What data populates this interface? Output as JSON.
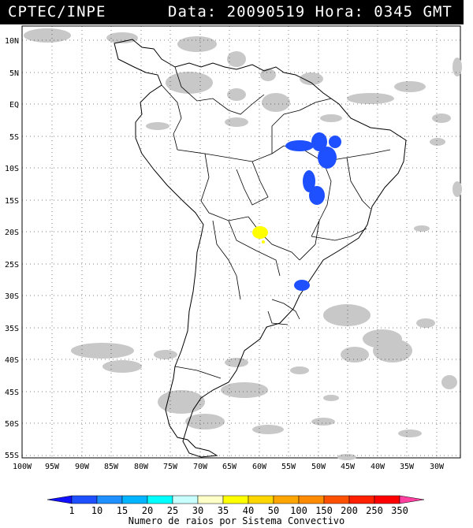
{
  "header": {
    "organization": "CPTEC/INPE",
    "date_label": "Data:",
    "date_value": "20090519",
    "time_label": "Hora:",
    "time_value": "0345",
    "timezone": "GMT"
  },
  "map": {
    "lat_labels": [
      "10N",
      "5N",
      "EQ",
      "5S",
      "10S",
      "15S",
      "20S",
      "25S",
      "30S",
      "35S",
      "40S",
      "45S",
      "50S",
      "55S"
    ],
    "lon_labels": [
      "100W",
      "95W",
      "90W",
      "85W",
      "80W",
      "75W",
      "70W",
      "65W",
      "60W",
      "55W",
      "50W",
      "45W",
      "40W",
      "35W",
      "30W"
    ],
    "cloud_color": "#c8c8c8",
    "land_outline_color": "#000000",
    "grid_style": "dotted",
    "flash_clusters": [
      {
        "region": "Para / Maranhao",
        "color": "#1e50ff",
        "class": "1-10"
      },
      {
        "region": "Tocantins",
        "color": "#1e50ff",
        "class": "1-10"
      },
      {
        "region": "Paraguay north",
        "color": "#ffff00",
        "class": "35-40"
      },
      {
        "region": "Rio Grande do Sul",
        "color": "#1e50ff",
        "class": "1-10"
      }
    ]
  },
  "legend": {
    "caption": "Numero de raios por Sistema Convectivo",
    "values": [
      "1",
      "10",
      "15",
      "20",
      "25",
      "30",
      "35",
      "40",
      "50",
      "100",
      "150",
      "200",
      "250",
      "350"
    ],
    "colors": [
      "#1010ff",
      "#1e50ff",
      "#1e90ff",
      "#00b4ff",
      "#00ffff",
      "#c8ffff",
      "#ffffc8",
      "#ffff00",
      "#ffd700",
      "#ffa500",
      "#ff8c00",
      "#ff5000",
      "#ff2000",
      "#ff0000",
      "#ff40a0"
    ]
  }
}
